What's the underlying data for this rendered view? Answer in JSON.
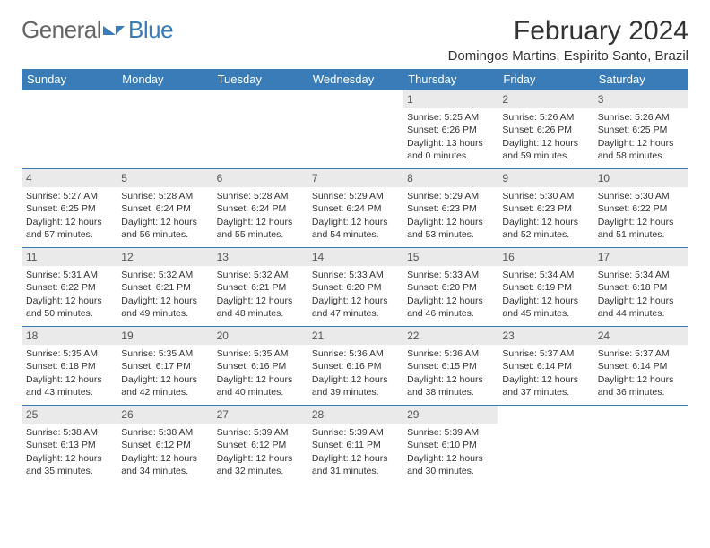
{
  "brand": {
    "text1": "General",
    "text2": "Blue"
  },
  "title": "February 2024",
  "location": "Domingos Martins, Espirito Santo, Brazil",
  "colors": {
    "header_bg": "#3a7cb8",
    "header_fg": "#ffffff",
    "daynum_bg": "#eaeaea",
    "border": "#3a7cb8",
    "background": "#ffffff"
  },
  "font": {
    "family": "Arial",
    "title_size": 30,
    "location_size": 15,
    "header_size": 13,
    "cell_size": 10.5
  },
  "weekdays": [
    "Sunday",
    "Monday",
    "Tuesday",
    "Wednesday",
    "Thursday",
    "Friday",
    "Saturday"
  ],
  "grid": [
    [
      {
        "n": "",
        "sr": "",
        "ss": "",
        "dl": ""
      },
      {
        "n": "",
        "sr": "",
        "ss": "",
        "dl": ""
      },
      {
        "n": "",
        "sr": "",
        "ss": "",
        "dl": ""
      },
      {
        "n": "",
        "sr": "",
        "ss": "",
        "dl": ""
      },
      {
        "n": "1",
        "sr": "Sunrise: 5:25 AM",
        "ss": "Sunset: 6:26 PM",
        "dl": "Daylight: 13 hours and 0 minutes."
      },
      {
        "n": "2",
        "sr": "Sunrise: 5:26 AM",
        "ss": "Sunset: 6:26 PM",
        "dl": "Daylight: 12 hours and 59 minutes."
      },
      {
        "n": "3",
        "sr": "Sunrise: 5:26 AM",
        "ss": "Sunset: 6:25 PM",
        "dl": "Daylight: 12 hours and 58 minutes."
      }
    ],
    [
      {
        "n": "4",
        "sr": "Sunrise: 5:27 AM",
        "ss": "Sunset: 6:25 PM",
        "dl": "Daylight: 12 hours and 57 minutes."
      },
      {
        "n": "5",
        "sr": "Sunrise: 5:28 AM",
        "ss": "Sunset: 6:24 PM",
        "dl": "Daylight: 12 hours and 56 minutes."
      },
      {
        "n": "6",
        "sr": "Sunrise: 5:28 AM",
        "ss": "Sunset: 6:24 PM",
        "dl": "Daylight: 12 hours and 55 minutes."
      },
      {
        "n": "7",
        "sr": "Sunrise: 5:29 AM",
        "ss": "Sunset: 6:24 PM",
        "dl": "Daylight: 12 hours and 54 minutes."
      },
      {
        "n": "8",
        "sr": "Sunrise: 5:29 AM",
        "ss": "Sunset: 6:23 PM",
        "dl": "Daylight: 12 hours and 53 minutes."
      },
      {
        "n": "9",
        "sr": "Sunrise: 5:30 AM",
        "ss": "Sunset: 6:23 PM",
        "dl": "Daylight: 12 hours and 52 minutes."
      },
      {
        "n": "10",
        "sr": "Sunrise: 5:30 AM",
        "ss": "Sunset: 6:22 PM",
        "dl": "Daylight: 12 hours and 51 minutes."
      }
    ],
    [
      {
        "n": "11",
        "sr": "Sunrise: 5:31 AM",
        "ss": "Sunset: 6:22 PM",
        "dl": "Daylight: 12 hours and 50 minutes."
      },
      {
        "n": "12",
        "sr": "Sunrise: 5:32 AM",
        "ss": "Sunset: 6:21 PM",
        "dl": "Daylight: 12 hours and 49 minutes."
      },
      {
        "n": "13",
        "sr": "Sunrise: 5:32 AM",
        "ss": "Sunset: 6:21 PM",
        "dl": "Daylight: 12 hours and 48 minutes."
      },
      {
        "n": "14",
        "sr": "Sunrise: 5:33 AM",
        "ss": "Sunset: 6:20 PM",
        "dl": "Daylight: 12 hours and 47 minutes."
      },
      {
        "n": "15",
        "sr": "Sunrise: 5:33 AM",
        "ss": "Sunset: 6:20 PM",
        "dl": "Daylight: 12 hours and 46 minutes."
      },
      {
        "n": "16",
        "sr": "Sunrise: 5:34 AM",
        "ss": "Sunset: 6:19 PM",
        "dl": "Daylight: 12 hours and 45 minutes."
      },
      {
        "n": "17",
        "sr": "Sunrise: 5:34 AM",
        "ss": "Sunset: 6:18 PM",
        "dl": "Daylight: 12 hours and 44 minutes."
      }
    ],
    [
      {
        "n": "18",
        "sr": "Sunrise: 5:35 AM",
        "ss": "Sunset: 6:18 PM",
        "dl": "Daylight: 12 hours and 43 minutes."
      },
      {
        "n": "19",
        "sr": "Sunrise: 5:35 AM",
        "ss": "Sunset: 6:17 PM",
        "dl": "Daylight: 12 hours and 42 minutes."
      },
      {
        "n": "20",
        "sr": "Sunrise: 5:35 AM",
        "ss": "Sunset: 6:16 PM",
        "dl": "Daylight: 12 hours and 40 minutes."
      },
      {
        "n": "21",
        "sr": "Sunrise: 5:36 AM",
        "ss": "Sunset: 6:16 PM",
        "dl": "Daylight: 12 hours and 39 minutes."
      },
      {
        "n": "22",
        "sr": "Sunrise: 5:36 AM",
        "ss": "Sunset: 6:15 PM",
        "dl": "Daylight: 12 hours and 38 minutes."
      },
      {
        "n": "23",
        "sr": "Sunrise: 5:37 AM",
        "ss": "Sunset: 6:14 PM",
        "dl": "Daylight: 12 hours and 37 minutes."
      },
      {
        "n": "24",
        "sr": "Sunrise: 5:37 AM",
        "ss": "Sunset: 6:14 PM",
        "dl": "Daylight: 12 hours and 36 minutes."
      }
    ],
    [
      {
        "n": "25",
        "sr": "Sunrise: 5:38 AM",
        "ss": "Sunset: 6:13 PM",
        "dl": "Daylight: 12 hours and 35 minutes."
      },
      {
        "n": "26",
        "sr": "Sunrise: 5:38 AM",
        "ss": "Sunset: 6:12 PM",
        "dl": "Daylight: 12 hours and 34 minutes."
      },
      {
        "n": "27",
        "sr": "Sunrise: 5:39 AM",
        "ss": "Sunset: 6:12 PM",
        "dl": "Daylight: 12 hours and 32 minutes."
      },
      {
        "n": "28",
        "sr": "Sunrise: 5:39 AM",
        "ss": "Sunset: 6:11 PM",
        "dl": "Daylight: 12 hours and 31 minutes."
      },
      {
        "n": "29",
        "sr": "Sunrise: 5:39 AM",
        "ss": "Sunset: 6:10 PM",
        "dl": "Daylight: 12 hours and 30 minutes."
      },
      {
        "n": "",
        "sr": "",
        "ss": "",
        "dl": ""
      },
      {
        "n": "",
        "sr": "",
        "ss": "",
        "dl": ""
      }
    ]
  ]
}
